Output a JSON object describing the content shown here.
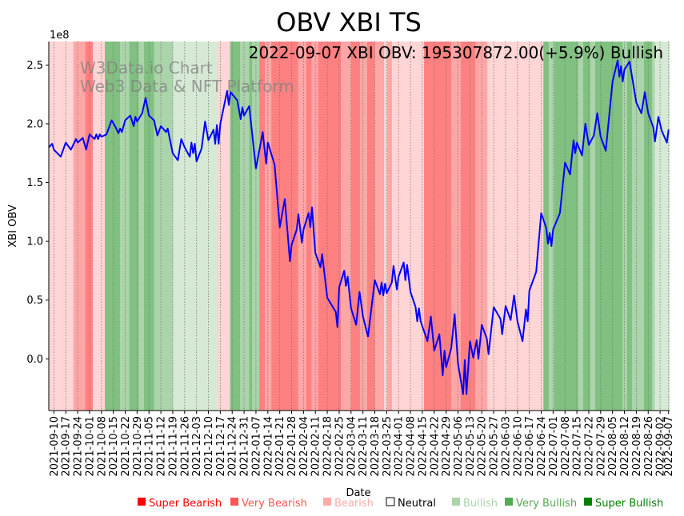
{
  "chart_data": {
    "type": "line",
    "title": "OBV XBI TS",
    "annotation": "2022-09-07 XBI OBV: 195307872.00(+5.9%) Bullish",
    "watermark": [
      "W3Data.io Chart",
      "Web3 Data & NFT Platform"
    ],
    "xlabel": "Date",
    "ylabel": "XBI OBV",
    "y_multiplier_label": "1e8",
    "x_units": "days since 2021-09-07",
    "xlim": [
      0,
      365.6
    ],
    "ylim": [
      -0.44,
      2.7
    ],
    "y_ticks": [
      0.0,
      0.5,
      1.0,
      1.5,
      2.0,
      2.5
    ],
    "y_tick_labels": [
      "0.0",
      "0.5",
      "1.0",
      "1.5",
      "2.0",
      "2.5"
    ],
    "x_tick_first_day": 3,
    "x_tick_step_days": 7,
    "x_tick_last_day": 365,
    "x_tick_labels": [
      "2021-09-10",
      "2021-09-17",
      "2021-09-24",
      "2021-10-01",
      "2021-10-08",
      "2021-10-15",
      "2021-10-22",
      "2021-10-29",
      "2021-11-05",
      "2021-11-12",
      "2021-11-19",
      "2021-11-26",
      "2021-12-03",
      "2021-12-10",
      "2021-12-17",
      "2021-12-24",
      "2021-12-31",
      "2022-01-07",
      "2022-01-14",
      "2022-01-21",
      "2022-01-28",
      "2022-02-04",
      "2022-02-11",
      "2022-02-18",
      "2022-02-25",
      "2022-03-04",
      "2022-03-11",
      "2022-03-18",
      "2022-03-25",
      "2022-04-01",
      "2022-04-08",
      "2022-04-15",
      "2022-04-22",
      "2022-04-29",
      "2022-05-06",
      "2022-05-13",
      "2022-05-20",
      "2022-05-27",
      "2022-06-03",
      "2022-06-10",
      "2022-06-17",
      "2022-06-24",
      "2022-07-01",
      "2022-07-08",
      "2022-07-15",
      "2022-07-22",
      "2022-07-29",
      "2022-08-05",
      "2022-08-12",
      "2022-08-19",
      "2022-08-26",
      "2022-09-02",
      "2022-09-07"
    ],
    "grid": "x-dotted",
    "series": [
      {
        "name": "XBI OBV (1e8)",
        "color": "#0000ff",
        "points": [
          [
            0,
            1.8
          ],
          [
            2,
            1.83
          ],
          [
            3,
            1.78
          ],
          [
            7,
            1.72
          ],
          [
            10,
            1.84
          ],
          [
            13,
            1.78
          ],
          [
            16,
            1.87
          ],
          [
            17,
            1.84
          ],
          [
            20,
            1.88
          ],
          [
            22,
            1.78
          ],
          [
            24,
            1.91
          ],
          [
            27,
            1.87
          ],
          [
            28,
            1.91
          ],
          [
            29,
            1.87
          ],
          [
            30,
            1.91
          ],
          [
            31,
            1.89
          ],
          [
            34,
            1.91
          ],
          [
            37,
            2.03
          ],
          [
            39,
            1.98
          ],
          [
            41,
            1.92
          ],
          [
            42,
            1.96
          ],
          [
            43,
            1.93
          ],
          [
            45,
            2.03
          ],
          [
            48,
            2.07
          ],
          [
            50,
            1.98
          ],
          [
            51,
            2.06
          ],
          [
            52,
            2.02
          ],
          [
            55,
            2.09
          ],
          [
            57,
            2.22
          ],
          [
            59,
            2.07
          ],
          [
            62,
            2.03
          ],
          [
            64,
            1.9
          ],
          [
            66,
            1.98
          ],
          [
            69,
            1.93
          ],
          [
            70,
            1.96
          ],
          [
            73,
            1.75
          ],
          [
            76,
            1.69
          ],
          [
            78,
            1.87
          ],
          [
            80,
            1.8
          ],
          [
            83,
            1.72
          ],
          [
            84,
            1.84
          ],
          [
            85,
            1.75
          ],
          [
            86,
            1.83
          ],
          [
            87,
            1.68
          ],
          [
            90,
            1.79
          ],
          [
            92,
            2.02
          ],
          [
            94,
            1.86
          ],
          [
            97,
            1.95
          ],
          [
            98,
            1.83
          ],
          [
            99,
            1.99
          ],
          [
            100,
            1.83
          ],
          [
            101,
            2.0
          ],
          [
            105,
            2.28
          ],
          [
            106,
            2.16
          ],
          [
            107,
            2.27
          ],
          [
            111,
            2.2
          ],
          [
            113,
            2.04
          ],
          [
            114,
            2.14
          ],
          [
            115,
            2.07
          ],
          [
            118,
            2.15
          ],
          [
            122,
            1.62
          ],
          [
            126,
            1.93
          ],
          [
            128,
            1.66
          ],
          [
            129,
            1.84
          ],
          [
            133,
            1.65
          ],
          [
            136,
            1.12
          ],
          [
            139,
            1.36
          ],
          [
            142,
            0.83
          ],
          [
            143,
            0.97
          ],
          [
            146,
            1.1
          ],
          [
            147,
            1.23
          ],
          [
            149,
            0.99
          ],
          [
            150,
            1.1
          ],
          [
            153,
            1.24
          ],
          [
            154,
            1.12
          ],
          [
            155,
            1.29
          ],
          [
            157,
            0.9
          ],
          [
            160,
            0.78
          ],
          [
            161,
            0.89
          ],
          [
            164,
            0.52
          ],
          [
            169,
            0.4
          ],
          [
            170,
            0.27
          ],
          [
            171,
            0.61
          ],
          [
            174,
            0.75
          ],
          [
            175,
            0.62
          ],
          [
            176,
            0.7
          ],
          [
            178,
            0.43
          ],
          [
            181,
            0.29
          ],
          [
            183,
            0.57
          ],
          [
            185,
            0.36
          ],
          [
            188,
            0.19
          ],
          [
            192,
            0.67
          ],
          [
            195,
            0.55
          ],
          [
            196,
            0.65
          ],
          [
            197,
            0.54
          ],
          [
            198,
            0.64
          ],
          [
            199,
            0.56
          ],
          [
            202,
            0.65
          ],
          [
            203,
            0.79
          ],
          [
            205,
            0.59
          ],
          [
            206,
            0.7
          ],
          [
            209,
            0.82
          ],
          [
            210,
            0.67
          ],
          [
            211,
            0.8
          ],
          [
            213,
            0.57
          ],
          [
            216,
            0.44
          ],
          [
            217,
            0.32
          ],
          [
            218,
            0.43
          ],
          [
            219,
            0.32
          ],
          [
            223,
            0.15
          ],
          [
            225,
            0.36
          ],
          [
            227,
            0.07
          ],
          [
            230,
            0.21
          ],
          [
            232,
            -0.14
          ],
          [
            233,
            0.07
          ],
          [
            234,
            -0.07
          ],
          [
            237,
            0.09
          ],
          [
            239,
            0.38
          ],
          [
            241,
            -0.04
          ],
          [
            244,
            -0.3
          ],
          [
            245,
            -0.01
          ],
          [
            246,
            -0.3
          ],
          [
            248,
            0.15
          ],
          [
            250,
            0.01
          ],
          [
            252,
            0.16
          ],
          [
            253,
            0.0
          ],
          [
            255,
            0.29
          ],
          [
            258,
            0.17
          ],
          [
            259,
            0.04
          ],
          [
            262,
            0.44
          ],
          [
            266,
            0.34
          ],
          [
            267,
            0.21
          ],
          [
            269,
            0.45
          ],
          [
            272,
            0.33
          ],
          [
            274,
            0.54
          ],
          [
            276,
            0.32
          ],
          [
            279,
            0.15
          ],
          [
            281,
            0.42
          ],
          [
            282,
            0.32
          ],
          [
            283,
            0.58
          ],
          [
            287,
            0.74
          ],
          [
            290,
            1.24
          ],
          [
            293,
            1.11
          ],
          [
            294,
            0.98
          ],
          [
            295,
            1.07
          ],
          [
            296,
            0.96
          ],
          [
            297,
            1.1
          ],
          [
            301,
            1.24
          ],
          [
            304,
            1.67
          ],
          [
            307,
            1.57
          ],
          [
            309,
            1.86
          ],
          [
            310,
            1.75
          ],
          [
            311,
            1.84
          ],
          [
            314,
            1.73
          ],
          [
            316,
            2.0
          ],
          [
            318,
            1.82
          ],
          [
            321,
            1.9
          ],
          [
            323,
            2.09
          ],
          [
            325,
            1.89
          ],
          [
            328,
            1.77
          ],
          [
            332,
            2.36
          ],
          [
            335,
            2.54
          ],
          [
            336,
            2.4
          ],
          [
            337,
            2.49
          ],
          [
            338,
            2.36
          ],
          [
            339,
            2.46
          ],
          [
            342,
            2.53
          ],
          [
            346,
            2.18
          ],
          [
            349,
            2.09
          ],
          [
            351,
            2.27
          ],
          [
            353,
            2.09
          ],
          [
            356,
            1.97
          ],
          [
            357,
            1.85
          ],
          [
            359,
            2.06
          ],
          [
            361,
            1.94
          ],
          [
            364,
            1.84
          ],
          [
            365,
            1.95
          ]
        ]
      }
    ],
    "sentiment_bands": [
      [
        0,
        14.5,
        "Bearish"
      ],
      [
        14.5,
        21.5,
        "Very Bearish"
      ],
      [
        21.5,
        25.9,
        "Super Bearish"
      ],
      [
        25.9,
        33,
        "Bearish"
      ],
      [
        33,
        41.9,
        "Super Bullish"
      ],
      [
        41.9,
        47.4,
        "Very Bullish"
      ],
      [
        47.4,
        52.9,
        "Super Bullish"
      ],
      [
        52.9,
        56.1,
        "Very Bullish"
      ],
      [
        56.1,
        62,
        "Super Bullish"
      ],
      [
        62,
        73,
        "Very Bullish"
      ],
      [
        73,
        99.5,
        "Bullish"
      ],
      [
        99.5,
        106.8,
        "Bearish"
      ],
      [
        106.8,
        112.6,
        "Super Bullish"
      ],
      [
        112.6,
        118.1,
        "Very Bullish"
      ],
      [
        118.1,
        119.7,
        "Super Bullish"
      ],
      [
        119.7,
        124,
        "Very Bullish"
      ],
      [
        124,
        127.2,
        "Super Bearish"
      ],
      [
        127.2,
        131.1,
        "Very Bearish"
      ],
      [
        131.1,
        146.8,
        "Super Bearish"
      ],
      [
        146.8,
        151.6,
        "Very Bearish"
      ],
      [
        151.6,
        154.7,
        "Super Bearish"
      ],
      [
        154.7,
        158.6,
        "Very Bearish"
      ],
      [
        158.6,
        172,
        "Super Bearish"
      ],
      [
        172,
        178.1,
        "Very Bearish"
      ],
      [
        178.1,
        183.3,
        "Super Bearish"
      ],
      [
        183.3,
        187.5,
        "Very Bearish"
      ],
      [
        187.5,
        191.9,
        "Super Bearish"
      ],
      [
        191.9,
        197.4,
        "Very Bearish"
      ],
      [
        197.4,
        199.3,
        "Bearish"
      ],
      [
        199.3,
        202.1,
        "Very Bearish"
      ],
      [
        202.1,
        221,
        "Bearish"
      ],
      [
        221,
        237,
        "Super Bearish"
      ],
      [
        237,
        242.6,
        "Very Bearish"
      ],
      [
        242.6,
        251.2,
        "Super Bearish"
      ],
      [
        251.2,
        258.3,
        "Very Bearish"
      ],
      [
        258.3,
        291.3,
        "Bearish"
      ],
      [
        291.3,
        294.4,
        "Super Bullish"
      ],
      [
        294.4,
        297.6,
        "Very Bullish"
      ],
      [
        297.6,
        311.7,
        "Super Bullish"
      ],
      [
        311.7,
        314.7,
        "Very Bullish"
      ],
      [
        314.7,
        318.8,
        "Super Bullish"
      ],
      [
        318.8,
        321.8,
        "Very Bullish"
      ],
      [
        321.8,
        337.9,
        "Super Bullish"
      ],
      [
        337.9,
        340.6,
        "Very Bullish"
      ],
      [
        340.6,
        343.4,
        "Super Bullish"
      ],
      [
        343.4,
        350.5,
        "Very Bullish"
      ],
      [
        350.5,
        355.2,
        "Super Bullish"
      ],
      [
        355.2,
        356.8,
        "Very Bullish"
      ],
      [
        356.8,
        365.6,
        "Bullish"
      ]
    ],
    "band_colors": {
      "Super Bearish": "#ff8080",
      "Very Bearish": "#ffa6a6",
      "Bearish": "#ffd5d5",
      "Bullish": "#d5e9d5",
      "Very Bullish": "#aad4aa",
      "Super Bullish": "#80c080"
    },
    "legend": {
      "placement": "bottom",
      "items": [
        {
          "label": "Super Bearish",
          "color": "#ff0000"
        },
        {
          "label": "Very Bearish",
          "color": "#ff5555"
        },
        {
          "label": "Bearish",
          "color": "#ffaaaa"
        },
        {
          "label": "Neutral",
          "color": "#ffffff"
        },
        {
          "label": "Bullish",
          "color": "#aad4aa"
        },
        {
          "label": "Very Bullish",
          "color": "#55aa55"
        },
        {
          "label": "Super Bullish",
          "color": "#008000"
        }
      ]
    }
  }
}
